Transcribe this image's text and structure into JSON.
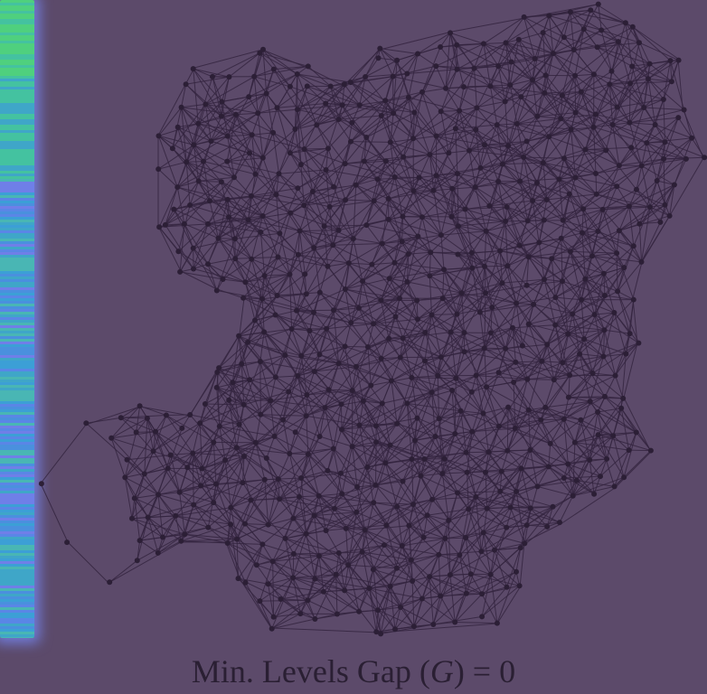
{
  "caption": {
    "prefix": "Min. Levels Gap (",
    "symbol": "G",
    "suffix": ") = 0"
  },
  "colors": {
    "background": "#5c4a6a",
    "graph_edge": "#34253f",
    "graph_node": "#2c1f36",
    "sidebar_glow": "#7f8cff"
  },
  "sidebar": {
    "stripe_palette": [
      "#4fd07e",
      "#44c2a0",
      "#3fa6c8",
      "#4a90de",
      "#5a86e6",
      "#6f7fe8",
      "#3c9fd6",
      "#49b6b4"
    ]
  }
}
